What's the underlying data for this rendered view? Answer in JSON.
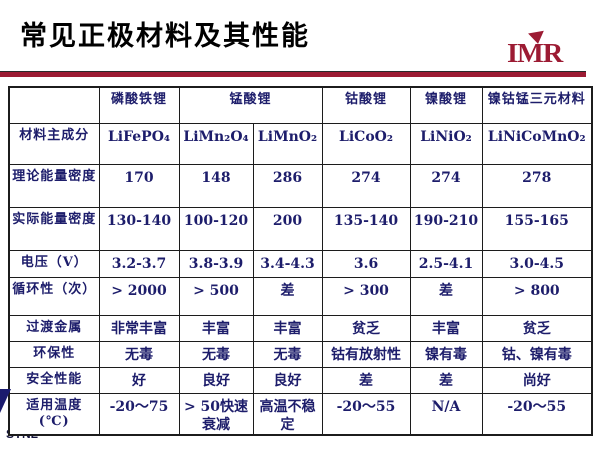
{
  "slide": {
    "title": "常见正极材料及其性能",
    "logo_text": "IMR",
    "footer": "SYNL"
  },
  "colors": {
    "accent_maroon": "#9c1b33",
    "table_text_navy": "#1d1d6b",
    "table_border": "#1c1c1c"
  },
  "table": {
    "header": [
      {
        "label": "",
        "span": 1
      },
      {
        "label": "磷酸铁锂",
        "span": 1
      },
      {
        "label": "锰酸锂",
        "span": 2
      },
      {
        "label": "钴酸锂",
        "span": 1
      },
      {
        "label": "镍酸锂",
        "span": 1
      },
      {
        "label": "镍钴锰三元材料",
        "span": 1
      }
    ],
    "rows": [
      {
        "label": "材料主成分",
        "cells": [
          "LiFePO₄",
          "LiMn₂O₄",
          "LiMnO₂",
          "LiCoO₂",
          "LiNiO₂",
          "LiNiCoMnO₂"
        ]
      },
      {
        "label": "理论能量密度",
        "cells": [
          "170",
          "148",
          "286",
          "274",
          "274",
          "278"
        ]
      },
      {
        "label": "实际能量密度",
        "cells": [
          "130-140",
          "100-120",
          "200",
          "135-140",
          "190-210",
          "155-165"
        ]
      },
      {
        "label": "电压（V）",
        "cells": [
          "3.2-3.7",
          "3.8-3.9",
          "3.4-4.3",
          "3.6",
          "2.5-4.1",
          "3.0-4.5"
        ]
      },
      {
        "label": "循环性（次）",
        "cells": [
          "> 2000",
          "> 500",
          "差",
          "> 300",
          "差",
          "> 800"
        ]
      },
      {
        "label": "过渡金属",
        "cells": [
          "非常丰富",
          "丰富",
          "丰富",
          "贫乏",
          "丰富",
          "贫乏"
        ]
      },
      {
        "label": "环保性",
        "cells": [
          "无毒",
          "无毒",
          "无毒",
          "钴有放射性",
          "镍有毒",
          "钴、镍有毒"
        ]
      },
      {
        "label": "安全性能",
        "cells": [
          "好",
          "良好",
          "良好",
          "差",
          "差",
          "尚好"
        ]
      },
      {
        "label": "适用温度(℃)",
        "cells": [
          "-20～75",
          "> 50快速衰减",
          "高温不稳定",
          "-20～55",
          "N/A",
          "-20～55"
        ]
      }
    ]
  }
}
